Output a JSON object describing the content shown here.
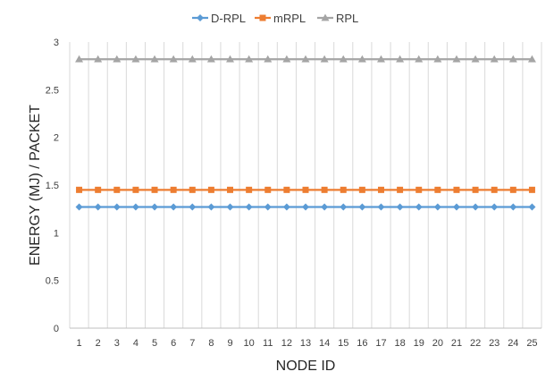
{
  "chart_data": {
    "type": "line",
    "title": "",
    "xlabel": "NODE ID",
    "ylabel": "ENERGY (MJ) / PACKET",
    "categories": [
      "1",
      "2",
      "3",
      "4",
      "5",
      "6",
      "7",
      "8",
      "9",
      "10",
      "11",
      "12",
      "13",
      "14",
      "15",
      "16",
      "17",
      "18",
      "19",
      "20",
      "21",
      "22",
      "23",
      "24",
      "25"
    ],
    "ylim": [
      0,
      3
    ],
    "yticks": [
      "0",
      "0.5",
      "1",
      "1.5",
      "2",
      "2.5",
      "3"
    ],
    "grid": "vertical",
    "legend_position": "top",
    "series": [
      {
        "name": "D-RPL",
        "color": "#5B9BD5",
        "marker": "diamond",
        "values": [
          1.27,
          1.27,
          1.27,
          1.27,
          1.27,
          1.27,
          1.27,
          1.27,
          1.27,
          1.27,
          1.27,
          1.27,
          1.27,
          1.27,
          1.27,
          1.27,
          1.27,
          1.27,
          1.27,
          1.27,
          1.27,
          1.27,
          1.27,
          1.27,
          1.27
        ]
      },
      {
        "name": "mRPL",
        "color": "#ED7D31",
        "marker": "square",
        "values": [
          1.45,
          1.45,
          1.45,
          1.45,
          1.45,
          1.45,
          1.45,
          1.45,
          1.45,
          1.45,
          1.45,
          1.45,
          1.45,
          1.45,
          1.45,
          1.45,
          1.45,
          1.45,
          1.45,
          1.45,
          1.45,
          1.45,
          1.45,
          1.45,
          1.45
        ]
      },
      {
        "name": "RPL",
        "color": "#A5A5A5",
        "marker": "triangle",
        "values": [
          2.82,
          2.82,
          2.82,
          2.82,
          2.82,
          2.82,
          2.82,
          2.82,
          2.82,
          2.82,
          2.82,
          2.82,
          2.82,
          2.82,
          2.82,
          2.82,
          2.82,
          2.82,
          2.82,
          2.82,
          2.82,
          2.82,
          2.82,
          2.82,
          2.82
        ]
      }
    ]
  }
}
